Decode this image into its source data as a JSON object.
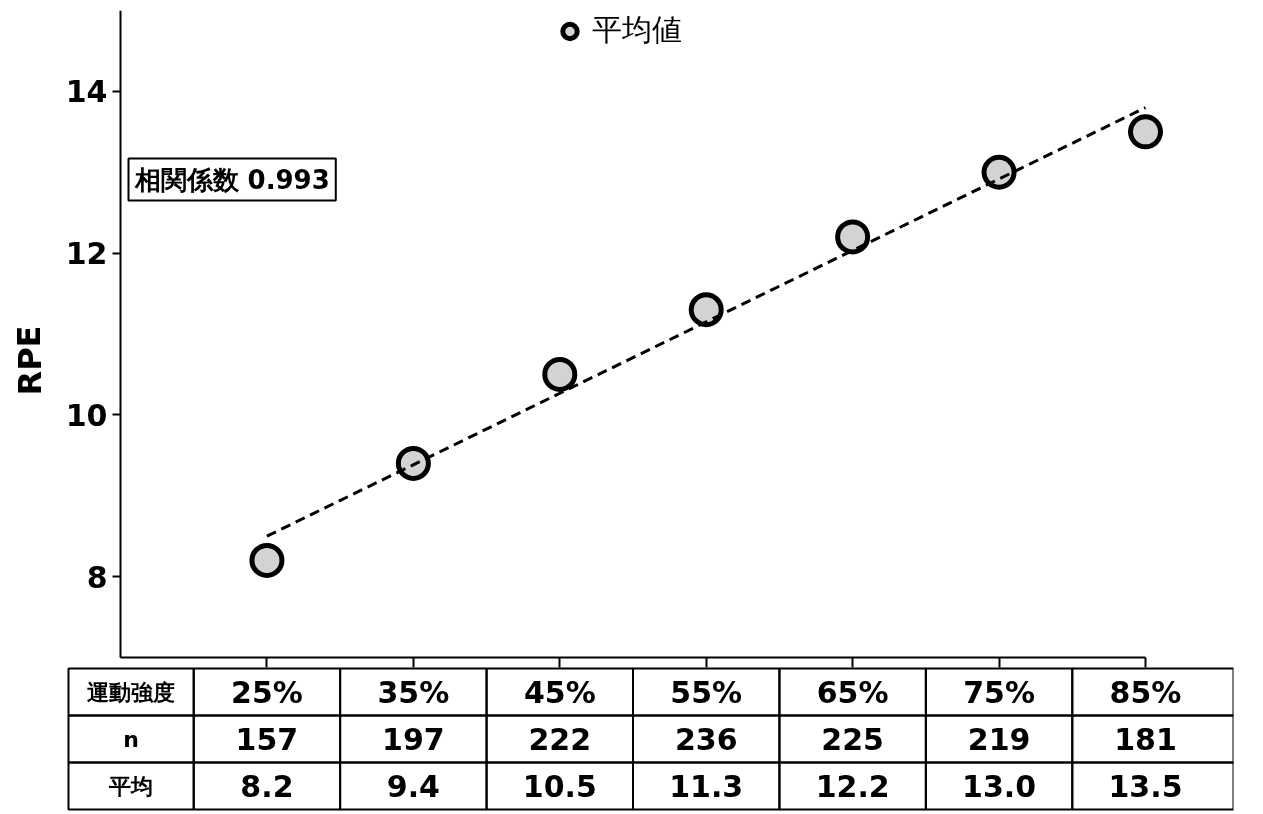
{
  "chart_data": {
    "type": "scatter",
    "categories": [
      "25%",
      "35%",
      "45%",
      "55%",
      "65%",
      "75%",
      "85%"
    ],
    "ylabel": "RPE",
    "ylim": [
      7,
      15
    ],
    "yticks": [
      8,
      10,
      12,
      14
    ],
    "grid": false,
    "legend": "top",
    "tick_labels": "y",
    "annotations": [
      "相関係数 0.993",
      "運動強度",
      "n",
      "平均",
      "157",
      "197",
      "222",
      "236",
      "225",
      "219",
      "181"
    ],
    "series": [
      {
        "name": "平均値",
        "color": "#d3d3d3",
        "marker": "circle",
        "values": [
          8.2,
          9.4,
          10.5,
          11.3,
          12.2,
          13.0,
          13.5
        ],
        "value_labels": [
          "8.2",
          "9.4",
          "10.5",
          "11.3",
          "12.2",
          "13.0",
          "13.5"
        ]
      },
      {
        "type": "line",
        "x": [
          "25%",
          "85%"
        ],
        "values": [
          8.5,
          13.8
        ],
        "color": "#000000",
        "line_style": "dashed"
      }
    ]
  }
}
